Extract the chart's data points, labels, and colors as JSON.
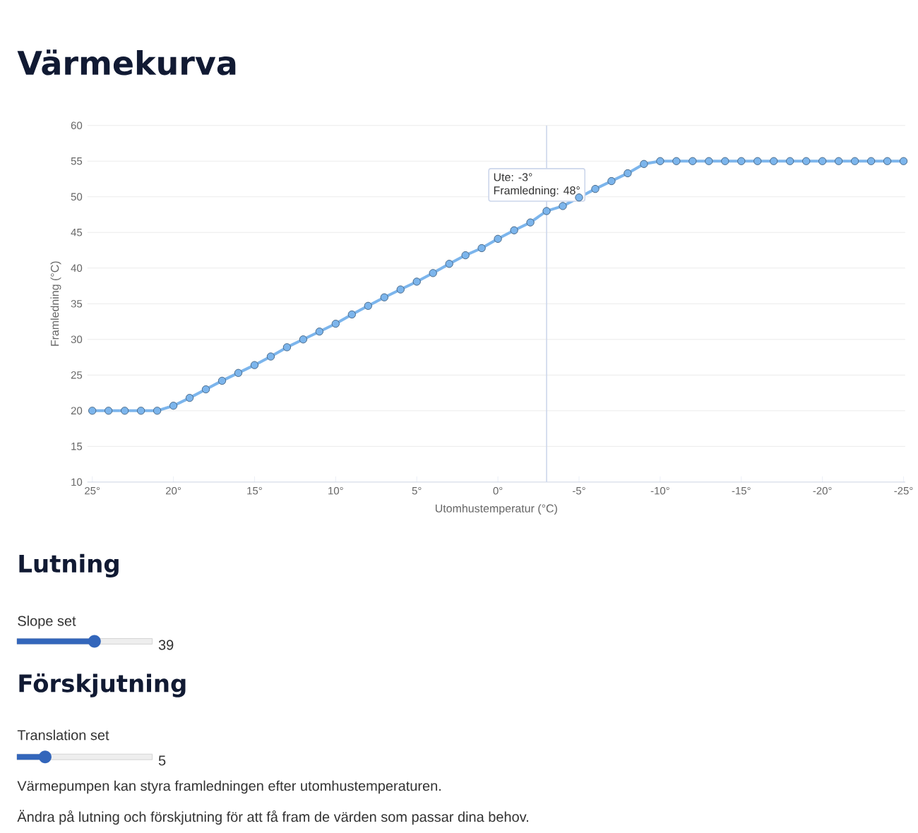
{
  "chart_data": {
    "type": "line",
    "title": "Värmekurva",
    "xlabel": "Utomhustemperatur (°C)",
    "ylabel": "Framledning (°C)",
    "series": [
      {
        "color": "#7cb5ec",
        "x": [
          25,
          24,
          23,
          22,
          21,
          20,
          19,
          18,
          17,
          16,
          15,
          14,
          13,
          12,
          11,
          10,
          9,
          8,
          7,
          6,
          5,
          4,
          3,
          2,
          1,
          0,
          -1,
          -2,
          -3,
          -4,
          -5,
          -6,
          -7,
          -8,
          -9,
          -10,
          -11,
          -12,
          -13,
          -14,
          -15,
          -16,
          -17,
          -18,
          -19,
          -20,
          -21,
          -22,
          -23,
          -24,
          -25
        ],
        "values": [
          20,
          20,
          20,
          20,
          20,
          20.7,
          21.8,
          23.0,
          24.2,
          25.3,
          26.4,
          27.6,
          28.9,
          30.0,
          31.1,
          32.2,
          33.5,
          34.7,
          35.9,
          37.0,
          38.1,
          39.3,
          40.6,
          41.8,
          42.8,
          44.1,
          45.3,
          46.4,
          48,
          48.7,
          49.9,
          51.1,
          52.2,
          53.3,
          54.6,
          55,
          55,
          55,
          55,
          55,
          55,
          55,
          55,
          55,
          55,
          55,
          55,
          55,
          55,
          55,
          55
        ]
      }
    ],
    "xlim": [
      25.3,
      -25.1
    ],
    "ylim": [
      10,
      60
    ],
    "xticks": [
      {
        "value": 25,
        "label": "25°"
      },
      {
        "value": 20,
        "label": "20°"
      },
      {
        "value": 15,
        "label": "15°"
      },
      {
        "value": 10,
        "label": "10°"
      },
      {
        "value": 5,
        "label": "5°"
      },
      {
        "value": 0,
        "label": "0°"
      },
      {
        "value": -5,
        "label": "-5°"
      },
      {
        "value": -10,
        "label": "-10°"
      },
      {
        "value": -15,
        "label": "-15°"
      },
      {
        "value": -20,
        "label": "-20°"
      },
      {
        "value": -25,
        "label": "-25°"
      }
    ],
    "yticks": [
      10,
      15,
      20,
      25,
      30,
      35,
      40,
      45,
      50,
      55,
      60
    ],
    "grid": "y",
    "marker": "circle",
    "line_style": "solid",
    "ref_lines": [
      {
        "axis": "x",
        "value": -3,
        "color": "#ccd6eb"
      }
    ],
    "annotations": [
      {
        "text": "Ute: -3°",
        "x": -3,
        "y": 48
      },
      {
        "text": "Framledning: 48°",
        "x": -3,
        "y": 48
      },
      "Lutning",
      "Slope set",
      "39",
      "Förskjutning",
      "Translation set",
      "5",
      "Värmepumpen kan styra framledningen efter utomhustemperaturen.",
      "Ändra på lutning och förskjutning för att få fram de värden som passar dina behov."
    ]
  }
}
